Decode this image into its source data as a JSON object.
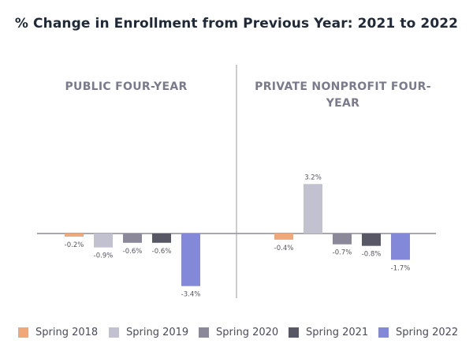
{
  "chart_data": {
    "type": "bar",
    "title": "% Change in Enrollment from Previous Year: 2021 to 2022",
    "ylabel": "",
    "ylim": [
      -4,
      6.5
    ],
    "grid": false,
    "legend_position": "bottom",
    "series": [
      {
        "name": "Spring 2018",
        "color": "#f0a878"
      },
      {
        "name": "Spring 2019",
        "color": "#c2c1cf"
      },
      {
        "name": "Spring 2020",
        "color": "#8a8899"
      },
      {
        "name": "Spring 2021",
        "color": "#575766"
      },
      {
        "name": "Spring 2022",
        "color": "#8488d8"
      }
    ],
    "panels": [
      {
        "title": "PUBLIC FOUR-YEAR",
        "values": [
          -0.2,
          -0.9,
          -0.6,
          -0.6,
          -3.4
        ],
        "labels": [
          "-0.2%",
          "-0.9%",
          "-0.6%",
          "-0.6%",
          "-3.4%"
        ]
      },
      {
        "title": "PRIVATE NONPROFIT FOUR-YEAR",
        "values": [
          -0.4,
          3.2,
          -0.7,
          -0.8,
          -1.7
        ],
        "labels": [
          "-0.4%",
          "3.2%",
          "-0.7%",
          "-0.8%",
          "-1.7%"
        ]
      }
    ]
  }
}
